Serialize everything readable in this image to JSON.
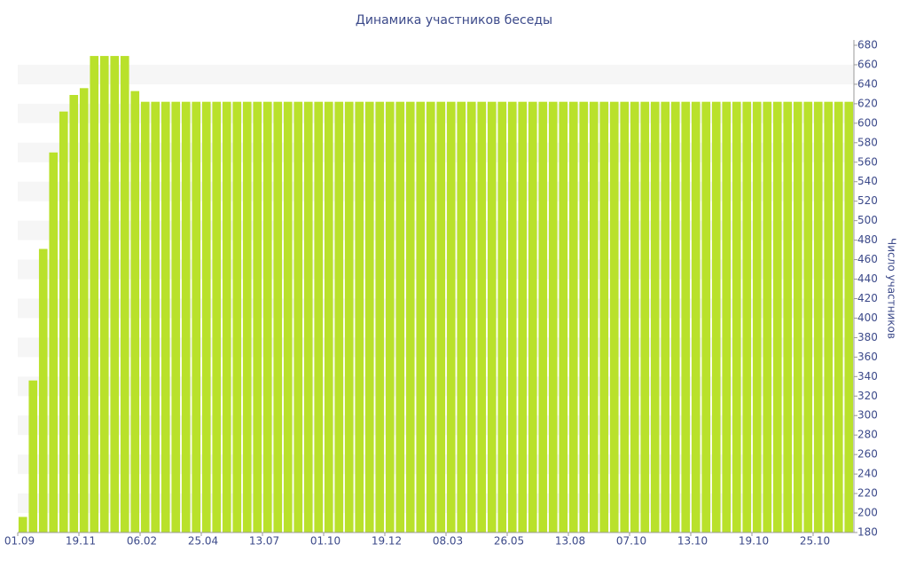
{
  "chart_data": {
    "type": "bar",
    "title": "Динамика участников беседы",
    "y_label": "Число участников",
    "categories": [
      "01.09",
      null,
      null,
      null,
      null,
      null,
      "19.11",
      null,
      null,
      null,
      null,
      null,
      "06.02",
      null,
      null,
      null,
      null,
      null,
      "25.04",
      null,
      null,
      null,
      null,
      null,
      "13.07",
      null,
      null,
      null,
      null,
      null,
      "01.10",
      null,
      null,
      null,
      null,
      null,
      "19.12",
      null,
      null,
      null,
      null,
      null,
      "08.03",
      null,
      null,
      null,
      null,
      null,
      "26.05",
      null,
      null,
      null,
      null,
      null,
      "13.08",
      null,
      null,
      null,
      null,
      null,
      "07.10",
      null,
      null,
      null,
      null,
      null,
      "13.10",
      null,
      null,
      null,
      null,
      null,
      "19.10",
      null,
      null,
      null,
      null,
      null,
      "25.10",
      null,
      null,
      null
    ],
    "values": [
      196,
      336,
      471,
      570,
      612,
      629,
      636,
      669,
      669,
      669,
      669,
      633,
      622,
      622,
      622,
      622,
      622,
      622,
      622,
      622,
      622,
      622,
      622,
      622,
      622,
      622,
      622,
      622,
      622,
      622,
      622,
      622,
      622,
      622,
      622,
      622,
      622,
      622,
      622,
      622,
      622,
      622,
      622,
      622,
      622,
      622,
      622,
      622,
      622,
      622,
      622,
      622,
      622,
      622,
      622,
      622,
      622,
      622,
      622,
      622,
      622,
      622,
      622,
      622,
      622,
      622,
      622,
      622,
      622,
      622,
      622,
      622,
      622,
      622,
      622,
      622,
      622,
      622,
      622,
      622,
      622,
      622
    ],
    "color": "#b9e12b",
    "ylim": [
      180,
      680
    ],
    "yticks": [
      180,
      200,
      220,
      240,
      260,
      280,
      300,
      320,
      340,
      360,
      380,
      400,
      420,
      440,
      460,
      480,
      500,
      520,
      540,
      560,
      580,
      600,
      620,
      640,
      660,
      680
    ],
    "grid": true
  }
}
